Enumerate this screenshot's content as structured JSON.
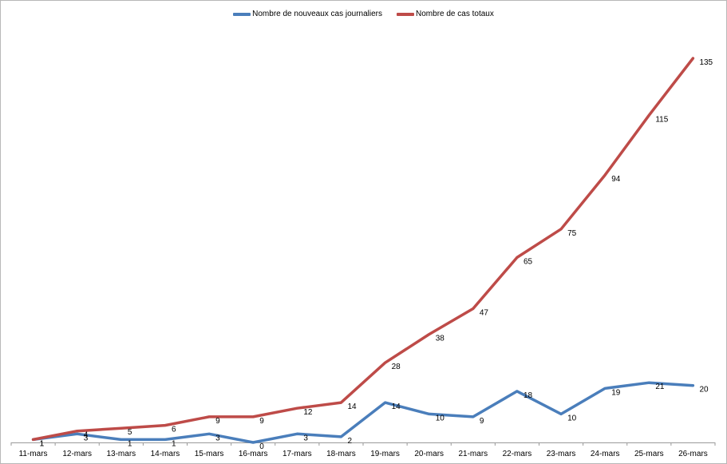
{
  "chart_data": {
    "type": "line",
    "title": "",
    "xlabel": "",
    "ylabel": "",
    "categories": [
      "11-mars",
      "12-mars",
      "13-mars",
      "14-mars",
      "15-mars",
      "16-mars",
      "17-mars",
      "18-mars",
      "19-mars",
      "20-mars",
      "21-mars",
      "22-mars",
      "23-mars",
      "24-mars",
      "25-mars",
      "26-mars"
    ],
    "ylim": [
      0,
      135
    ],
    "grid": false,
    "legend_position": "top",
    "series": [
      {
        "name": "Nombre de nouveaux cas journaliers",
        "color": "#4a7ebb",
        "values": [
          1,
          3,
          1,
          1,
          3,
          0,
          3,
          2,
          14,
          10,
          9,
          18,
          10,
          19,
          21,
          20
        ],
        "labels": [
          "1",
          "3",
          "1",
          "1",
          "3",
          "0",
          "3",
          "2",
          "14",
          "10",
          "9",
          "18",
          "10",
          "19",
          "21",
          "20"
        ]
      },
      {
        "name": "Nombre de cas totaux",
        "color": "#be4b48",
        "values": [
          1,
          4,
          5,
          6,
          9,
          9,
          12,
          14,
          28,
          38,
          47,
          65,
          75,
          94,
          115,
          135
        ],
        "labels": [
          "1",
          "4",
          "5",
          "6",
          "9",
          "9",
          "12",
          "14",
          "28",
          "38",
          "47",
          "65",
          "75",
          "94",
          "115",
          "135"
        ]
      }
    ]
  }
}
